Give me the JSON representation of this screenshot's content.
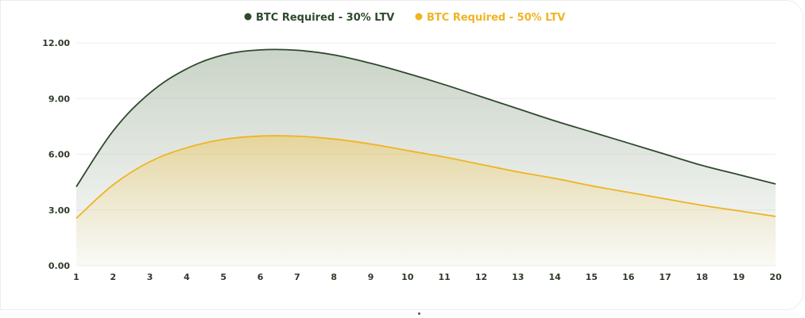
{
  "chart_data": {
    "type": "area",
    "x": [
      1,
      2,
      3,
      4,
      5,
      6,
      7,
      8,
      9,
      10,
      11,
      12,
      13,
      14,
      15,
      16,
      17,
      18,
      19,
      20
    ],
    "series": [
      {
        "name": "BTC Required - 30% LTV",
        "color": "#2e4a2c",
        "values": [
          4.25,
          7.25,
          9.3,
          10.6,
          11.35,
          11.62,
          11.6,
          11.35,
          10.9,
          10.35,
          9.75,
          9.1,
          8.45,
          7.8,
          7.2,
          6.6,
          6.0,
          5.4,
          4.9,
          4.4
        ]
      },
      {
        "name": "BTC Required - 50% LTV",
        "color": "#f0b323",
        "values": [
          2.55,
          4.35,
          5.6,
          6.35,
          6.8,
          6.98,
          6.97,
          6.82,
          6.55,
          6.2,
          5.85,
          5.45,
          5.05,
          4.7,
          4.3,
          3.95,
          3.6,
          3.25,
          2.95,
          2.65
        ]
      }
    ],
    "yticks": [
      "0.00",
      "3.00",
      "6.00",
      "9.00",
      "12.00"
    ],
    "ylim": [
      0,
      12
    ],
    "grid": true,
    "legend": "top-center"
  }
}
